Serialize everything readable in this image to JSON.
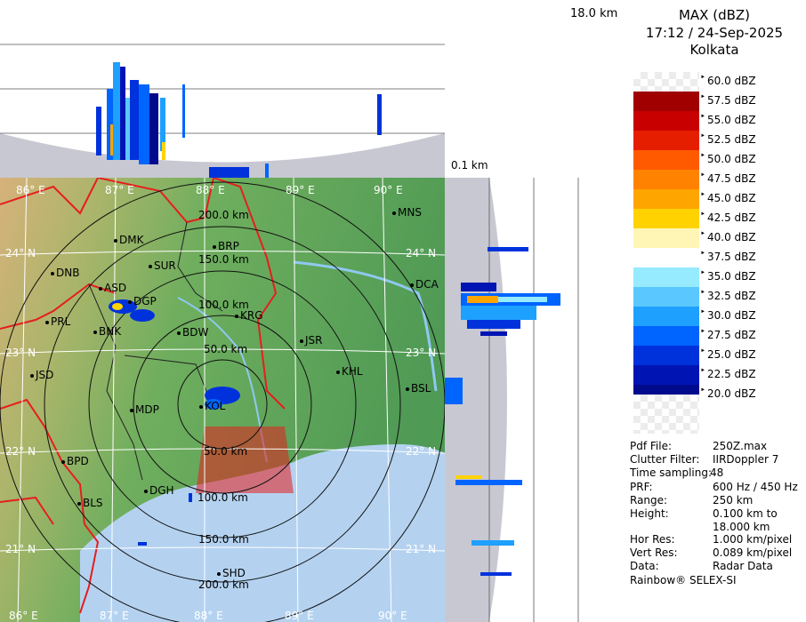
{
  "product": {
    "title": "MAX (dBZ)",
    "timestamp": "17:12 / 24-Sep-2025",
    "station": "Kolkata"
  },
  "section_labels": {
    "top_height": "18.0 km",
    "base_height": "0.1 km"
  },
  "legend": {
    "levels": [
      {
        "label": "60.0 dBZ",
        "color": "#ffffff"
      },
      {
        "label": "57.5 dBZ",
        "color": "#a00000"
      },
      {
        "label": "55.0 dBZ",
        "color": "#c80000"
      },
      {
        "label": "52.5 dBZ",
        "color": "#e61e00"
      },
      {
        "label": "50.0 dBZ",
        "color": "#ff5a00"
      },
      {
        "label": "47.5 dBZ",
        "color": "#ff8200"
      },
      {
        "label": "45.0 dBZ",
        "color": "#ffa500"
      },
      {
        "label": "42.5 dBZ",
        "color": "#ffd200"
      },
      {
        "label": "40.0 dBZ",
        "color": "#fff5b4"
      },
      {
        "label": "37.5 dBZ",
        "color": "#ffffff"
      },
      {
        "label": "35.0 dBZ",
        "color": "#96ebff"
      },
      {
        "label": "32.5 dBZ",
        "color": "#5ac8ff"
      },
      {
        "label": "30.0 dBZ",
        "color": "#1ea0ff"
      },
      {
        "label": "27.5 dBZ",
        "color": "#0064ff"
      },
      {
        "label": "25.0 dBZ",
        "color": "#0032dc"
      },
      {
        "label": "22.5 dBZ",
        "color": "#0014b4"
      },
      {
        "label": "20.0 dBZ",
        "color": "#000a8c"
      }
    ]
  },
  "info": [
    {
      "key": "Pdf File:",
      "value": "250Z.max"
    },
    {
      "key": "Clutter Filter:",
      "value": "IIRDoppler 7"
    },
    {
      "key": "Time sampling:",
      "value": "48"
    },
    {
      "key": "PRF:",
      "value": "600 Hz / 450 Hz"
    },
    {
      "key": "Range:",
      "value": "250 km"
    },
    {
      "key": "Height:",
      "value": "0.100 km to"
    },
    {
      "key": "",
      "value": "18.000 km"
    },
    {
      "key": "Hor Res:",
      "value": "1.000 km/pixel"
    },
    {
      "key": "Vert Res:",
      "value": "0.089 km/pixel"
    },
    {
      "key": "Data:",
      "value": "Radar Data"
    }
  ],
  "footer": "Rainbow® SELEX-SI",
  "map": {
    "longitudes": [
      "86° E",
      "87° E",
      "88° E",
      "89° E",
      "90° E"
    ],
    "latitudes": [
      "24° N",
      "23° N",
      "22° N",
      "21° N"
    ],
    "range_rings": [
      "50.0 km",
      "100.0 km",
      "150.0 km",
      "200.0 km"
    ],
    "stations": [
      "MNS",
      "DMK",
      "BRP",
      "DNB",
      "SUR",
      "ASD",
      "DGP",
      "DCA",
      "PRL",
      "KRG",
      "BNK",
      "BDW",
      "JSR",
      "KHL",
      "JSD",
      "KOL",
      "BSL",
      "MDP",
      "BPD",
      "DGH",
      "BLS",
      "SHD"
    ],
    "colors": {
      "land_low": "#3c9650",
      "land_high": "#c8a064",
      "sea": "#b4d2f0",
      "borders": "#e61e1e"
    }
  }
}
